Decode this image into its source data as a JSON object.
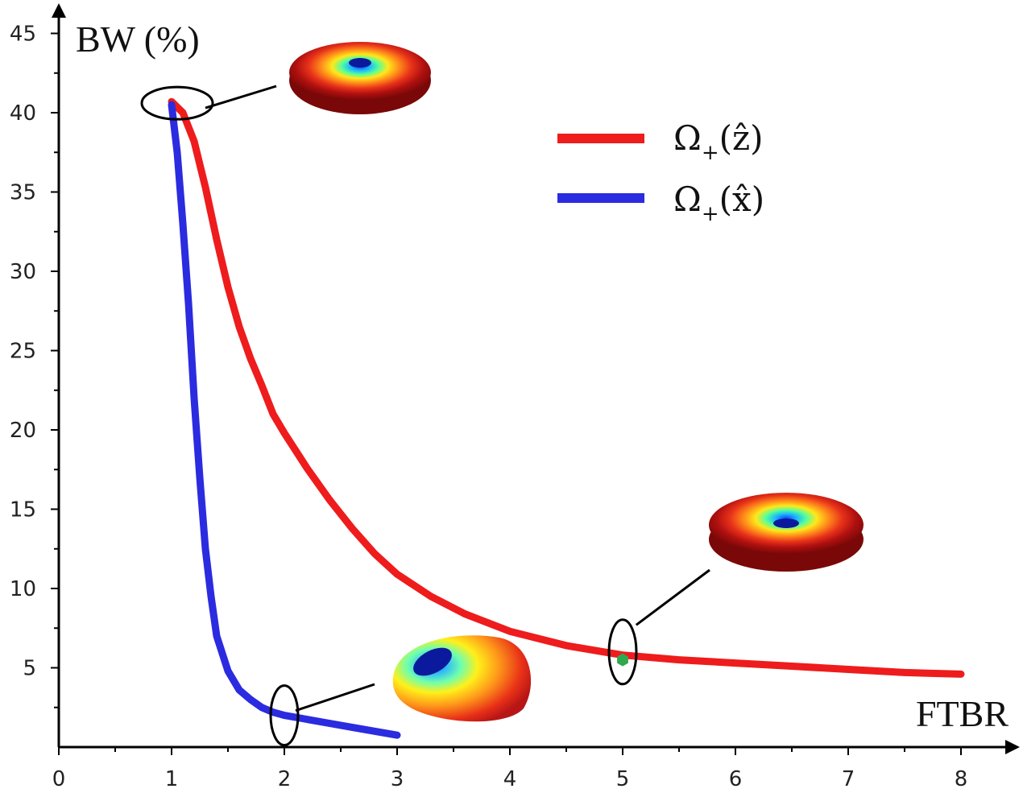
{
  "chart_data": {
    "type": "line",
    "title": "",
    "xlabel": "FTBR",
    "ylabel": "BW (%)",
    "xlim": [
      0,
      8.6
    ],
    "ylim": [
      0,
      47.5
    ],
    "xticks": [
      0,
      1,
      2,
      3,
      4,
      5,
      6,
      7,
      8
    ],
    "yticks": [
      5,
      10,
      15,
      20,
      25,
      30,
      35,
      40,
      45
    ],
    "grid": false,
    "legend_position": "top-right",
    "series": [
      {
        "name": "Ω+(ẑ)",
        "legend_main": "Ω",
        "legend_sub": "+",
        "legend_arg": "(ẑ)",
        "color": "#ee1c1c",
        "x": [
          1.0,
          1.1,
          1.2,
          1.3,
          1.4,
          1.5,
          1.6,
          1.7,
          1.8,
          1.9,
          2.0,
          2.2,
          2.4,
          2.6,
          2.8,
          3.0,
          3.3,
          3.6,
          4.0,
          4.5,
          5.0,
          5.5,
          6.0,
          6.5,
          7.0,
          7.5,
          8.0
        ],
        "y": [
          40.7,
          40.0,
          38.2,
          35.3,
          32.0,
          29.0,
          26.5,
          24.5,
          22.8,
          21.0,
          19.8,
          17.6,
          15.6,
          13.8,
          12.2,
          10.9,
          9.5,
          8.4,
          7.3,
          6.4,
          5.8,
          5.5,
          5.3,
          5.1,
          4.9,
          4.7,
          4.6
        ]
      },
      {
        "name": "Ω+(x̂)",
        "legend_main": "Ω",
        "legend_sub": "+",
        "legend_arg": "(x̂)",
        "color": "#2b2be0",
        "x": [
          1.0,
          1.05,
          1.1,
          1.15,
          1.2,
          1.25,
          1.3,
          1.35,
          1.4,
          1.5,
          1.6,
          1.7,
          1.8,
          1.9,
          2.0,
          2.2,
          2.4,
          2.6,
          2.8,
          3.0
        ],
        "y": [
          40.5,
          37.5,
          33.0,
          28.0,
          22.0,
          17.0,
          12.5,
          9.5,
          7.0,
          4.8,
          3.6,
          3.0,
          2.5,
          2.2,
          2.0,
          1.75,
          1.5,
          1.25,
          1.0,
          0.75
        ]
      }
    ],
    "annotations": [
      {
        "kind": "highlight-ellipse",
        "series": "Ω+(ẑ)",
        "x": 1.05,
        "y": 40.6,
        "inset": "doughnut-pattern-top",
        "inset_at": "above-right"
      },
      {
        "kind": "highlight-ellipse",
        "series": "Ω+(ẑ)",
        "x": 5.0,
        "y": 6.0,
        "inset": "doughnut-pattern-wide",
        "inset_at": "above-right"
      },
      {
        "kind": "highlight-ellipse",
        "series": "Ω+(x̂)",
        "x": 2.0,
        "y": 2.0,
        "inset": "tilted-doughnut-pattern",
        "inset_at": "right"
      }
    ],
    "marker": {
      "x": 5.0,
      "y": 5.5,
      "color": "#2fa84f"
    }
  }
}
